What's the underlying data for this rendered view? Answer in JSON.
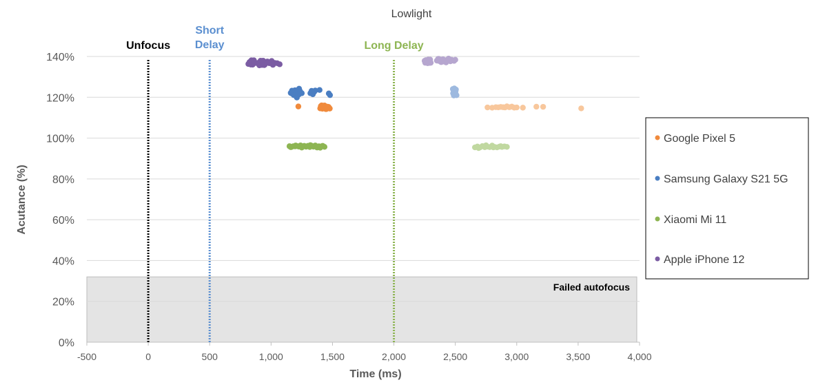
{
  "chart_data": {
    "type": "scatter",
    "title": "Lowlight",
    "xlabel": "Time (ms)",
    "ylabel": "Acutance (%)",
    "xlim": [
      -500,
      4000
    ],
    "ylim": [
      0,
      140
    ],
    "x_ticks": [
      -500,
      0,
      500,
      1000,
      1500,
      2000,
      2500,
      3000,
      3500,
      4000
    ],
    "x_tick_labels": [
      "-500",
      "0",
      "500",
      "1,000",
      "1,500",
      "2,000",
      "2,500",
      "3,000",
      "3,500",
      "4,000"
    ],
    "y_ticks": [
      0,
      20,
      40,
      60,
      80,
      100,
      120,
      140
    ],
    "y_tick_labels": [
      "0%",
      "20%",
      "40%",
      "60%",
      "80%",
      "100%",
      "120%",
      "140%"
    ],
    "grid": "horizontal",
    "legend_position": "right",
    "failed_region": {
      "label": "Failed autofocus",
      "y_max": 32,
      "color": "#e4e4e4"
    },
    "reference_lines": [
      {
        "x": 0,
        "label": "Unfocus",
        "color": "#000000"
      },
      {
        "x": 500,
        "label": "Short Delay",
        "color": "#5b8fd0"
      },
      {
        "x": 2000,
        "label": "Long Delay",
        "color": "#8db552"
      }
    ],
    "series": [
      {
        "name": "Google Pixel 5",
        "color": "#f08a3c",
        "light_color": "#f8c79c",
        "short_delay": {
          "x": [
            1222,
            1400,
            1410,
            1418,
            1425,
            1432,
            1440,
            1448,
            1456,
            1463,
            1470,
            1478,
            1405,
            1415,
            1428,
            1438,
            1450,
            1460,
            1472,
            1412,
            1422,
            1435,
            1445,
            1458,
            1468
          ],
          "y": [
            115.5,
            114.6,
            115.2,
            114.3,
            115.5,
            114.8,
            115.1,
            114.5,
            115.3,
            114.9,
            115.0,
            114.6,
            115.7,
            114.4,
            114.7,
            115.4,
            114.3,
            115.2,
            114.8,
            116.0,
            114.9,
            115.8,
            114.4,
            115.6,
            115.1
          ]
        },
        "long_delay": {
          "x": [
            2762,
            2800,
            2830,
            2850,
            2870,
            2890,
            2905,
            2920,
            2940,
            2960,
            2980,
            3000,
            3050,
            3160,
            3215,
            3525
          ],
          "y": [
            115.2,
            115.0,
            115.3,
            115.1,
            115.4,
            115.0,
            115.2,
            115.5,
            115.1,
            115.3,
            115.0,
            115.2,
            115.1,
            115.3,
            115.2,
            114.6
          ]
        }
      },
      {
        "name": "Samsung Galaxy S21 5G",
        "color": "#4a7ec2",
        "light_color": "#9db9df",
        "short_delay": {
          "x": [
            1160,
            1170,
            1180,
            1190,
            1200,
            1210,
            1220,
            1230,
            1240,
            1250,
            1170,
            1185,
            1195,
            1205,
            1215,
            1225,
            1235,
            1210,
            1228,
            1320,
            1330,
            1340,
            1350,
            1360,
            1395,
            1470,
            1480
          ],
          "y": [
            122.3,
            121.8,
            122.6,
            121.5,
            122.8,
            122.0,
            123.0,
            121.7,
            122.4,
            122.1,
            123.4,
            121.0,
            123.6,
            120.9,
            123.2,
            121.3,
            122.9,
            120.0,
            124.0,
            122.2,
            123.0,
            121.6,
            122.5,
            123.4,
            123.5,
            121.9,
            121.2
          ]
        },
        "long_delay": {
          "x": [
            2480,
            2485,
            2490,
            2495,
            2500,
            2505,
            2510,
            2482,
            2492,
            2502,
            2488,
            2498,
            2486,
            2496
          ],
          "y": [
            124.0,
            122.5,
            121.5,
            123.2,
            122.0,
            123.8,
            121.0,
            121.8,
            124.2,
            122.8,
            120.8,
            123.5,
            122.2,
            121.3
          ]
        }
      },
      {
        "name": "Xiaomi Mi 11",
        "color": "#8db552",
        "light_color": "#c0d8a0",
        "short_delay": {
          "x": [
            1150,
            1165,
            1180,
            1195,
            1210,
            1225,
            1240,
            1255,
            1270,
            1285,
            1300,
            1315,
            1330,
            1345,
            1360,
            1375,
            1390,
            1405,
            1420,
            1435,
            1160,
            1200,
            1250,
            1320,
            1400
          ],
          "y": [
            96.0,
            95.6,
            96.2,
            95.8,
            96.1,
            95.7,
            96.3,
            95.9,
            96.0,
            95.6,
            96.2,
            95.8,
            96.1,
            95.7,
            96.3,
            95.5,
            96.0,
            95.8,
            96.2,
            95.7,
            95.4,
            96.4,
            95.5,
            96.5,
            95.3
          ]
        },
        "long_delay": {
          "x": [
            2660,
            2680,
            2700,
            2720,
            2740,
            2760,
            2780,
            2800,
            2820,
            2840,
            2860,
            2880,
            2900,
            2920,
            2690,
            2750,
            2810,
            2870
          ],
          "y": [
            95.6,
            95.9,
            95.5,
            96.1,
            95.7,
            96.0,
            95.4,
            96.2,
            95.8,
            95.6,
            96.0,
            95.5,
            95.9,
            95.7,
            95.3,
            96.3,
            95.4,
            96.2
          ]
        }
      },
      {
        "name": "Apple iPhone 12",
        "color": "#7b5ca3",
        "light_color": "#b6a6cf",
        "short_delay": {
          "x": [
            815,
            825,
            835,
            845,
            855,
            865,
            880,
            900,
            910,
            920,
            930,
            940,
            950,
            960,
            970,
            985,
            1000,
            1010,
            1020,
            1030,
            1050,
            1070,
            840,
            850,
            860,
            905,
            915,
            925,
            935,
            945,
            1005,
            1015
          ],
          "y": [
            136.5,
            137.2,
            136.0,
            137.8,
            136.7,
            137.3,
            136.9,
            137.0,
            136.2,
            137.5,
            136.6,
            137.1,
            136.0,
            136.8,
            137.4,
            136.5,
            137.0,
            136.3,
            136.9,
            136.6,
            136.5,
            136.1,
            138.0,
            135.8,
            138.2,
            135.8,
            138.0,
            135.9,
            137.9,
            135.7,
            137.7,
            135.8
          ]
        },
        "long_delay": {
          "x": [
            2250,
            2260,
            2270,
            2280,
            2290,
            2300,
            2350,
            2360,
            2370,
            2380,
            2390,
            2400,
            2410,
            2420,
            2430,
            2440,
            2450,
            2460,
            2470,
            2480,
            2490,
            2500,
            2255,
            2275,
            2295,
            2365,
            2385,
            2405,
            2425,
            2445
          ],
          "y": [
            137.8,
            138.2,
            137.3,
            138.5,
            137.0,
            136.8,
            138.0,
            138.6,
            137.8,
            138.3,
            137.9,
            138.7,
            138.1,
            137.8,
            138.4,
            137.9,
            138.2,
            137.7,
            138.5,
            138.0,
            137.8,
            138.3,
            137.1,
            136.7,
            138.4,
            139.0,
            137.2,
            137.5,
            137.1,
            139.0
          ]
        }
      }
    ]
  }
}
